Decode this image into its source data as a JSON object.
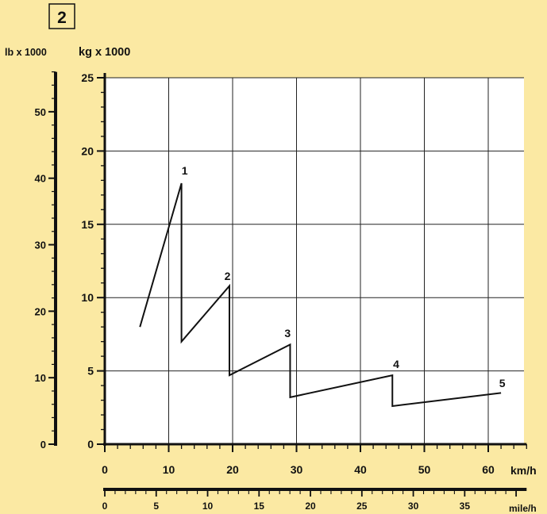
{
  "figure_number": "2",
  "colors": {
    "background": "#fbe9a3",
    "plot_area": "#ffffff",
    "ink": "#111111",
    "grid": "#222222"
  },
  "chart_data": {
    "type": "line",
    "title": "",
    "xlabel": "km/h",
    "xlabel_secondary": "mile/h",
    "ylabel": "kg x 1000",
    "ylabel_secondary": "lb x 1000",
    "xlim": [
      0,
      66
    ],
    "ylim": [
      0,
      25
    ],
    "x_ticks": [
      0,
      10,
      20,
      30,
      40,
      50,
      60
    ],
    "y_ticks": [
      0,
      5,
      10,
      15,
      20,
      25
    ],
    "x2_ticks": [
      0,
      5,
      10,
      15,
      20,
      25,
      30,
      35
    ],
    "y2_ticks": [
      0,
      10,
      20,
      30,
      40,
      50
    ],
    "grid": true,
    "series": [
      {
        "x": [
          5.5,
          12,
          12,
          19.5,
          19.5,
          29,
          29,
          45,
          45,
          62
        ],
        "y": [
          8,
          17.8,
          7,
          10.8,
          4.7,
          6.8,
          3.2,
          4.7,
          2.6,
          3.5
        ]
      }
    ],
    "annotations": [
      {
        "text": "1",
        "x": 12.5,
        "y": 18.4
      },
      {
        "text": "2",
        "x": 19.2,
        "y": 11.2
      },
      {
        "text": "3",
        "x": 28.6,
        "y": 7.3
      },
      {
        "text": "4",
        "x": 45.6,
        "y": 5.2
      },
      {
        "text": "5",
        "x": 62.2,
        "y": 3.9
      }
    ]
  }
}
